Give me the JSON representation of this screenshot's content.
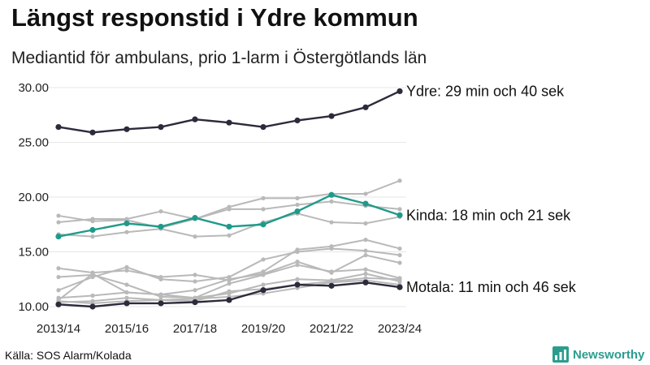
{
  "title": "Längst responstid i Ydre kommun",
  "subtitle": "Mediantid för ambulans, prio 1-larm i Östergötlands län",
  "source": "Källa: SOS Alarm/Kolada",
  "brand": {
    "name": "Newsworthy",
    "icon": "bar-chart-logo-icon"
  },
  "colors": {
    "grey": "#b9b9b9",
    "dark": "#2b2b3b",
    "teal": "#1f9a8a"
  },
  "chart_data": {
    "type": "line",
    "x": [
      "2013/14",
      "2014/15",
      "2015/16",
      "2016/17",
      "2017/18",
      "2018/19",
      "2019/20",
      "2020/21",
      "2021/22",
      "2022/23",
      "2023/24"
    ],
    "xtick_labels": [
      "2013/14",
      "2015/16",
      "2017/18",
      "2019/20",
      "2021/22",
      "2023/24"
    ],
    "yticks": [
      "10.00",
      "15.00",
      "20.00",
      "25.00",
      "30.00"
    ],
    "ylim": [
      10,
      30
    ],
    "grid": true,
    "highlight_labels": [
      {
        "series": 0,
        "text": "Ydre: 29 min och 40 sek"
      },
      {
        "series": 1,
        "text": "Kinda: 18 min och 21 sek"
      },
      {
        "series": 2,
        "text": "Motala: 11 min och 46 sek"
      }
    ],
    "series": [
      {
        "name": "Ydre",
        "color": "#2b2b3b",
        "values": [
          26.4,
          25.9,
          26.2,
          26.4,
          27.1,
          26.8,
          26.4,
          27.0,
          27.4,
          28.2,
          29.67
        ]
      },
      {
        "name": "Kinda",
        "color": "#1f9a8a",
        "values": [
          16.4,
          17.0,
          17.6,
          17.3,
          18.1,
          17.3,
          17.5,
          18.7,
          20.2,
          19.4,
          18.35
        ]
      },
      {
        "name": "Motala",
        "color": "#2b2b3b",
        "values": [
          10.2,
          10.0,
          10.3,
          10.3,
          10.4,
          10.6,
          11.5,
          12.0,
          11.9,
          12.2,
          11.77
        ]
      },
      {
        "color": "#b9b9b9",
        "values": [
          17.7,
          18.0,
          18.0,
          18.7,
          18.0,
          19.1,
          19.9,
          19.9,
          20.3,
          20.3,
          21.5
        ]
      },
      {
        "color": "#b9b9b9",
        "values": [
          18.3,
          17.8,
          17.9,
          17.2,
          18.0,
          18.9,
          18.9,
          19.3,
          19.6,
          19.2,
          18.9
        ]
      },
      {
        "color": "#b9b9b9",
        "values": [
          16.6,
          16.4,
          16.8,
          17.1,
          16.4,
          16.5,
          17.7,
          18.5,
          17.7,
          17.6,
          18.2
        ]
      },
      {
        "color": "#b9b9b9",
        "values": [
          13.5,
          13.1,
          13.3,
          12.7,
          12.9,
          12.4,
          13.2,
          15.2,
          15.5,
          16.1,
          15.3
        ]
      },
      {
        "color": "#b9b9b9",
        "values": [
          11.5,
          12.7,
          13.6,
          12.5,
          12.3,
          12.7,
          14.3,
          15.0,
          15.3,
          15.1,
          14.7
        ]
      },
      {
        "color": "#b9b9b9",
        "values": [
          10.6,
          13.0,
          11.3,
          11.1,
          11.5,
          12.5,
          13.0,
          14.1,
          13.1,
          14.7,
          14.0
        ]
      },
      {
        "color": "#b9b9b9",
        "values": [
          12.7,
          12.9,
          12.0,
          10.9,
          10.8,
          12.1,
          12.9,
          13.8,
          13.2,
          13.4,
          12.6
        ]
      },
      {
        "color": "#b9b9b9",
        "values": [
          10.8,
          11.0,
          11.3,
          11.1,
          10.8,
          11.2,
          12.0,
          12.5,
          12.4,
          13.0,
          12.3
        ]
      },
      {
        "color": "#b9b9b9",
        "values": [
          10.4,
          10.5,
          10.8,
          10.6,
          10.5,
          11.4,
          11.6,
          12.0,
          12.3,
          12.6,
          12.5
        ]
      },
      {
        "color": "#b9b9b9",
        "values": [
          10.5,
          10.3,
          10.5,
          10.6,
          10.7,
          10.9,
          11.2,
          11.7,
          12.2,
          12.4,
          12.0
        ]
      }
    ]
  }
}
